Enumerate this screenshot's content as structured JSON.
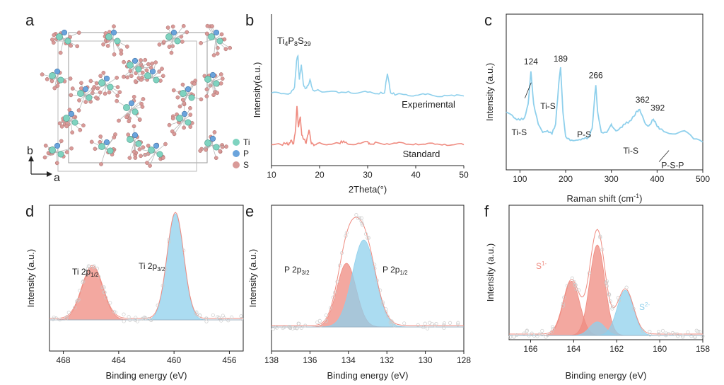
{
  "panels": {
    "a": {
      "label": "a",
      "legend": [
        "Ti",
        "P",
        "S"
      ],
      "axis_b": "b",
      "axis_a": "a",
      "colors": {
        "Ti": "#7fd3c0",
        "P": "#6aa4dc",
        "S": "#d99a98"
      }
    },
    "b": {
      "label": "b"
    },
    "c": {
      "label": "c"
    },
    "d": {
      "label": "d"
    },
    "e": {
      "label": "e"
    },
    "f": {
      "label": "f"
    }
  },
  "chart_data": [
    {
      "id": "b",
      "type": "line",
      "xlabel": "2Theta(°)",
      "ylabel": "Intensity(a.u.)",
      "xlim": [
        10,
        50
      ],
      "xticks": [
        10,
        20,
        30,
        40,
        50
      ],
      "compound": {
        "base": "Ti",
        "s1": "4",
        "p": "P",
        "s2": "8",
        "sulf": "S",
        "s3": "29"
      },
      "series": [
        {
          "name": "Experimental",
          "color": "#8fd0ec",
          "offset": 1.0,
          "x": [
            10,
            12,
            14,
            14.8,
            15.2,
            15.5,
            15.8,
            16.2,
            16.6,
            17,
            17.6,
            18,
            18.6,
            20,
            22,
            24,
            26,
            28,
            30,
            32,
            33.5,
            34.1,
            34.8,
            36,
            38,
            40,
            42,
            44,
            46,
            48,
            50
          ],
          "y": [
            0.12,
            0.11,
            0.12,
            0.2,
            0.55,
            0.62,
            0.3,
            0.5,
            0.25,
            0.18,
            0.22,
            0.3,
            0.16,
            0.15,
            0.14,
            0.12,
            0.14,
            0.12,
            0.13,
            0.11,
            0.12,
            0.38,
            0.12,
            0.1,
            0.1,
            0.09,
            0.1,
            0.08,
            0.09,
            0.08,
            0.08
          ]
        },
        {
          "name": "Standard",
          "color": "#ef8b80",
          "offset": 0.0,
          "x": [
            10,
            12,
            13.2,
            13.6,
            14,
            14.6,
            15.0,
            15.3,
            15.6,
            16.0,
            16.3,
            16.8,
            17.2,
            17.8,
            18.3,
            19,
            20,
            22,
            24,
            25,
            26,
            28,
            30,
            30.5,
            32,
            34,
            36,
            38,
            40,
            42,
            44,
            46,
            48,
            50
          ],
          "y": [
            0.02,
            0.02,
            0.06,
            0.02,
            0.1,
            0.04,
            0.3,
            0.75,
            0.35,
            0.55,
            0.2,
            0.12,
            0.05,
            0.3,
            0.04,
            0.02,
            0.06,
            0.03,
            0.05,
            0.09,
            0.03,
            0.05,
            0.08,
            0.03,
            0.06,
            0.04,
            0.05,
            0.03,
            0.04,
            0.03,
            0.03,
            0.03,
            0.02,
            0.02
          ]
        }
      ]
    },
    {
      "id": "c",
      "type": "line",
      "xlabel": "Raman shift (cm",
      "xlabel_sup": "-1",
      "xlabel_end": ")",
      "ylabel": "Intensity (a.u.)",
      "xlim": [
        70,
        500
      ],
      "xticks": [
        100,
        200,
        300,
        400,
        500
      ],
      "series": [
        {
          "name": "",
          "color": "#8fd0ec",
          "x": [
            70,
            80,
            90,
            100,
            110,
            118,
            124,
            130,
            140,
            150,
            160,
            170,
            178,
            185,
            189,
            194,
            200,
            210,
            220,
            230,
            240,
            250,
            258,
            263,
            266,
            270,
            278,
            290,
            300,
            305,
            312,
            320,
            330,
            340,
            350,
            356,
            362,
            368,
            375,
            382,
            388,
            392,
            398,
            405,
            420,
            440,
            460,
            480,
            500
          ],
          "y": [
            0.45,
            0.42,
            0.37,
            0.35,
            0.38,
            0.55,
            0.95,
            0.55,
            0.3,
            0.2,
            0.22,
            0.18,
            0.3,
            0.8,
            1.0,
            0.45,
            0.15,
            0.1,
            0.1,
            0.11,
            0.12,
            0.14,
            0.25,
            0.6,
            0.78,
            0.45,
            0.2,
            0.2,
            0.3,
            0.25,
            0.22,
            0.26,
            0.3,
            0.34,
            0.4,
            0.46,
            0.48,
            0.4,
            0.3,
            0.28,
            0.33,
            0.36,
            0.3,
            0.24,
            0.2,
            0.18,
            0.22,
            0.12,
            0.08
          ]
        }
      ],
      "annotations": [
        {
          "text": "124",
          "x": 124
        },
        {
          "text": "189",
          "x": 189
        },
        {
          "text": "266",
          "x": 266
        },
        {
          "text": "362",
          "x": 362
        },
        {
          "text": "392",
          "x": 392
        },
        {
          "text": "Ti-S",
          "x": 120
        },
        {
          "text": "Ti-S",
          "x": 186
        },
        {
          "text": "P-S",
          "x": 262
        },
        {
          "text": "Ti-S",
          "x": 358
        },
        {
          "text": "P-S-P",
          "x": 400
        }
      ]
    },
    {
      "id": "d",
      "type": "area",
      "xlabel": "Binding energy (eV)",
      "ylabel": "Intensity (a.u.)",
      "xlim": [
        469,
        455
      ],
      "xticks": [
        468,
        464,
        460,
        456
      ],
      "peaks": [
        {
          "name": "Ti 2p",
          "sub": "1/2",
          "center": 465.9,
          "height": 0.5,
          "width": 0.75,
          "color": "#ef8b80"
        },
        {
          "name": "Ti 2p",
          "sub": "3/2",
          "center": 459.9,
          "height": 1.0,
          "width": 0.6,
          "color": "#8fd0ec"
        }
      ]
    },
    {
      "id": "e",
      "type": "area",
      "xlabel": "Binding energy (eV)",
      "ylabel": "Intensity (a.u.)",
      "xlim": [
        138,
        128
      ],
      "xticks": [
        138,
        136,
        134,
        132,
        130,
        128
      ],
      "peaks": [
        {
          "name": "P 2p",
          "sub": "3/2",
          "center": 134.1,
          "height": 0.6,
          "width": 0.5,
          "color": "#ef8b80"
        },
        {
          "name": "P 2p",
          "sub": "1/2",
          "center": 133.2,
          "height": 0.82,
          "width": 0.6,
          "color": "#8fd0ec"
        }
      ]
    },
    {
      "id": "f",
      "type": "area",
      "xlabel": "Binding energy (eV)",
      "ylabel": "Intensity (a.u.)",
      "xlim": [
        167,
        158
      ],
      "xticks": [
        166,
        164,
        162,
        160,
        158
      ],
      "peaks": [
        {
          "name": "S",
          "sup": "1-",
          "center": 164.1,
          "height": 0.48,
          "width": 0.38,
          "color": "#ef8b80"
        },
        {
          "name": "S",
          "sup": "1-",
          "center": 162.9,
          "height": 0.8,
          "width": 0.35,
          "color": "#ef8b80"
        },
        {
          "name": "S",
          "sup": "2-",
          "center": 162.9,
          "height": 0.12,
          "width": 0.35,
          "color": "#8fd0ec"
        },
        {
          "name": "S",
          "sup": "2-",
          "center": 161.6,
          "height": 0.4,
          "width": 0.38,
          "color": "#8fd0ec"
        }
      ]
    }
  ]
}
